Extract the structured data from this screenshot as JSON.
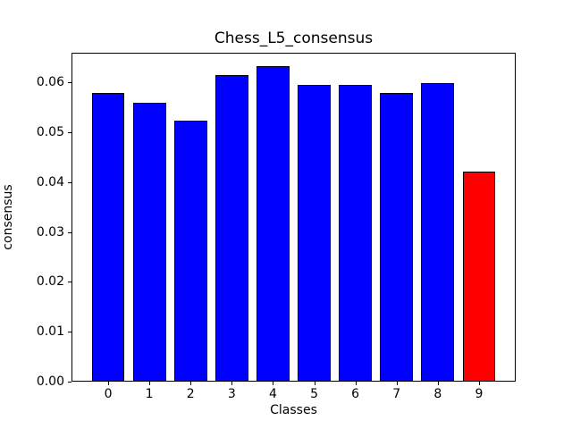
{
  "chart_data": {
    "type": "bar",
    "title": "Chess_L5_consensus",
    "xlabel": "Classes",
    "ylabel": "consensus",
    "categories": [
      "0",
      "1",
      "2",
      "3",
      "4",
      "5",
      "6",
      "7",
      "8",
      "9"
    ],
    "values": [
      0.0577,
      0.0558,
      0.0522,
      0.0614,
      0.0632,
      0.0593,
      0.0593,
      0.0577,
      0.0598,
      0.042
    ],
    "bar_colors": [
      "#0000ff",
      "#0000ff",
      "#0000ff",
      "#0000ff",
      "#0000ff",
      "#0000ff",
      "#0000ff",
      "#0000ff",
      "#0000ff",
      "#ff0000"
    ],
    "highlight_index": 9,
    "edge_color": "#000000",
    "ylim": [
      0,
      0.066
    ],
    "yticks": [
      0.0,
      0.01,
      0.02,
      0.03,
      0.04,
      0.05,
      0.06
    ],
    "ytick_labels": [
      "0.00",
      "0.01",
      "0.02",
      "0.03",
      "0.04",
      "0.05",
      "0.06"
    ],
    "grid": false,
    "legend": null,
    "background": "#ffffff"
  }
}
